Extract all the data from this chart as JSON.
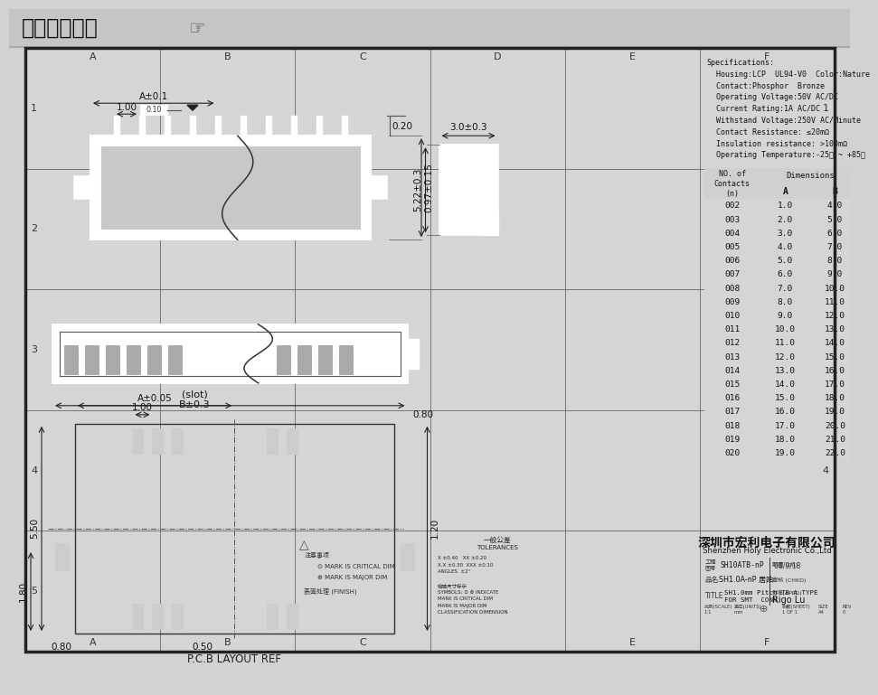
{
  "title": "在线图纸下载",
  "bg_color": "#d2d2d2",
  "draw_bg": "#d8d8d8",
  "white": "#ffffff",
  "company_cn": "深圳市宏利电子有限公司",
  "company_en": "Shenzhen Holy Electronic Co.,Ltd",
  "specs": [
    "Specifications:",
    "  Housing:LCP  UL94-V0  Color:Nature",
    "  Contact:Phosphor  Bronze",
    "  Operating Voltage:50V AC/DC",
    "  Current Rating:1A AC/DC",
    "  Withstand Voltage:250V AC/Minute",
    "  Contact Resistance: ≤20mΩ",
    "  Insulation resistance: >100mΩ",
    "  Operating Temperature:-25℃ ~ +85℃"
  ],
  "table_data": [
    [
      "002",
      "1.0",
      "4.0"
    ],
    [
      "003",
      "2.0",
      "5.0"
    ],
    [
      "004",
      "3.0",
      "6.0"
    ],
    [
      "005",
      "4.0",
      "7.0"
    ],
    [
      "006",
      "5.0",
      "8.0"
    ],
    [
      "007",
      "6.0",
      "9.0"
    ],
    [
      "008",
      "7.0",
      "10.0"
    ],
    [
      "009",
      "8.0",
      "11.0"
    ],
    [
      "010",
      "9.0",
      "12.0"
    ],
    [
      "011",
      "10.0",
      "13.0"
    ],
    [
      "012",
      "11.0",
      "14.0"
    ],
    [
      "013",
      "12.0",
      "15.0"
    ],
    [
      "014",
      "13.0",
      "16.0"
    ],
    [
      "015",
      "14.0",
      "17.0"
    ],
    [
      "016",
      "15.0",
      "18.0"
    ],
    [
      "017",
      "16.0",
      "19.0"
    ],
    [
      "018",
      "17.0",
      "20.0"
    ],
    [
      "019",
      "18.0",
      "21.0"
    ],
    [
      "020",
      "19.0",
      "22.0"
    ]
  ],
  "col_labels": [
    "A",
    "B",
    "C",
    "D",
    "E",
    "F"
  ],
  "row_labels": [
    "1",
    "2",
    "3",
    "4",
    "5"
  ],
  "footer": {
    "project_no": "SH10ATB-nP",
    "date": "'08/9/18",
    "product": "SH1.0A-nP 居贴",
    "title_line1": "SH1.0mm Pitch TB A TYPE",
    "title_line2": "FOR SMT  CONN",
    "scale": "1:1",
    "units": "mm",
    "sheet": "1 OF 1",
    "size": "A4",
    "rev": "0",
    "appd": "Rigo Lu"
  }
}
